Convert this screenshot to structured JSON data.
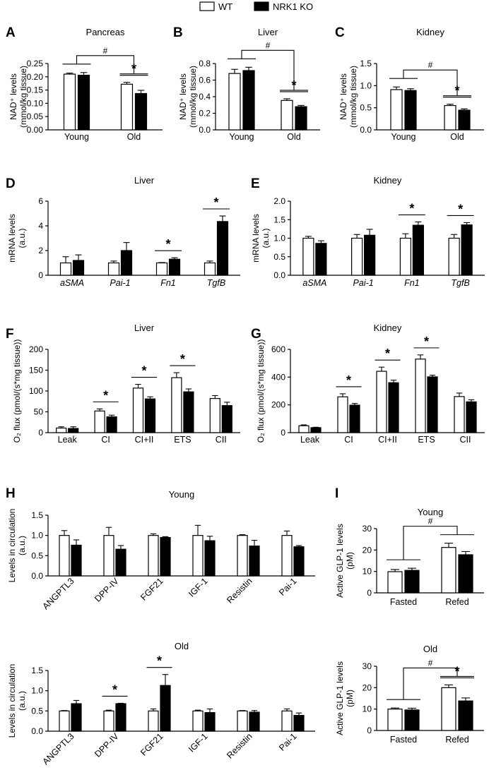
{
  "legend": {
    "items": [
      {
        "label": "WT",
        "fill": "#ffffff"
      },
      {
        "label": "NRK1 KO",
        "fill": "#000000"
      }
    ]
  },
  "chart_data": [
    {
      "panel": "A",
      "title": "Pancreas",
      "type": "bar",
      "ylabel": [
        "NAD⁺ levels",
        "(mmol/kg tissue)"
      ],
      "ylim": [
        0,
        0.25
      ],
      "yticks": [
        "0.00",
        "0.05",
        "0.10",
        "0.15",
        "0.20",
        "0.25"
      ],
      "categories": [
        "Young",
        "Old"
      ],
      "series": [
        {
          "name": "WT",
          "values": [
            0.21,
            0.172
          ],
          "err": [
            0.004,
            0.007
          ]
        },
        {
          "name": "NRK1 KO",
          "values": [
            0.206,
            0.137
          ],
          "err": [
            0.01,
            0.012
          ]
        }
      ],
      "annotations": [
        {
          "type": "bracket",
          "label": "#",
          "between": [
            "Young",
            "Old"
          ]
        },
        {
          "type": "sig",
          "label": "*",
          "category": "Old"
        }
      ]
    },
    {
      "panel": "B",
      "title": "Liver",
      "type": "bar",
      "ylabel": [
        "NAD⁺ levels",
        "(mmol/kg tissue)"
      ],
      "ylim": [
        0,
        0.8
      ],
      "yticks": [
        "0.0",
        "0.2",
        "0.4",
        "0.6",
        "0.8"
      ],
      "categories": [
        "Young",
        "Old"
      ],
      "series": [
        {
          "name": "WT",
          "values": [
            0.68,
            0.355
          ],
          "err": [
            0.05,
            0.02
          ]
        },
        {
          "name": "NRK1 KO",
          "values": [
            0.715,
            0.28
          ],
          "err": [
            0.04,
            0.015
          ]
        }
      ],
      "annotations": [
        {
          "type": "bracket",
          "label": "#",
          "between": [
            "Young",
            "Old"
          ]
        },
        {
          "type": "sig",
          "label": "*",
          "category": "Old"
        }
      ]
    },
    {
      "panel": "C",
      "title": "Kidney",
      "type": "bar",
      "ylabel": [
        "NAD⁺ levels",
        "(mmol/kg tissue)"
      ],
      "ylim": [
        0,
        1.5
      ],
      "yticks": [
        "0.0",
        "0.5",
        "1.0",
        "1.5"
      ],
      "categories": [
        "Young",
        "Old"
      ],
      "series": [
        {
          "name": "WT",
          "values": [
            0.91,
            0.55
          ],
          "err": [
            0.06,
            0.03
          ]
        },
        {
          "name": "NRK1 KO",
          "values": [
            0.89,
            0.445
          ],
          "err": [
            0.04,
            0.03
          ]
        }
      ],
      "annotations": [
        {
          "type": "bracket",
          "label": "#",
          "between": [
            "Young",
            "Old"
          ]
        },
        {
          "type": "sig",
          "label": "*",
          "category": "Old"
        }
      ]
    },
    {
      "panel": "D",
      "title": "Liver",
      "type": "bar",
      "ylabel": [
        "mRNA levels",
        "(a.u.)"
      ],
      "ylim": [
        0,
        6
      ],
      "yticks": [
        "0",
        "2",
        "4",
        "6"
      ],
      "categories": [
        "aSMA",
        "Pai-1",
        "Fn1",
        "TgfB"
      ],
      "series": [
        {
          "name": "WT",
          "values": [
            1.0,
            1.0,
            1.0,
            1.0
          ],
          "err": [
            0.5,
            0.15,
            0.03,
            0.15
          ]
        },
        {
          "name": "NRK1 KO",
          "values": [
            1.2,
            2.0,
            1.3,
            4.35
          ],
          "err": [
            0.45,
            0.65,
            0.12,
            0.45
          ]
        }
      ],
      "annotations": [
        {
          "type": "sig",
          "label": "*",
          "category": "Fn1"
        },
        {
          "type": "sig",
          "label": "*",
          "category": "TgfB"
        }
      ]
    },
    {
      "panel": "E",
      "title": "Kidney",
      "type": "bar",
      "ylabel": [
        "mRNA levels",
        "(a.u.)"
      ],
      "ylim": [
        0,
        2.0
      ],
      "yticks": [
        "0.0",
        "0.5",
        "1.0",
        "1.5",
        "2.0"
      ],
      "categories": [
        "aSMA",
        "Pai-1",
        "Fn1",
        "TgfB"
      ],
      "series": [
        {
          "name": "WT",
          "values": [
            1.0,
            1.0,
            1.0,
            1.0
          ],
          "err": [
            0.05,
            0.1,
            0.12,
            0.1
          ]
        },
        {
          "name": "NRK1 KO",
          "values": [
            0.86,
            1.08,
            1.35,
            1.36
          ],
          "err": [
            0.07,
            0.16,
            0.09,
            0.06
          ]
        }
      ],
      "annotations": [
        {
          "type": "sig",
          "label": "*",
          "category": "Fn1"
        },
        {
          "type": "sig",
          "label": "*",
          "category": "TgfB"
        }
      ]
    },
    {
      "panel": "F",
      "title": "Liver",
      "type": "bar",
      "ylabel": [
        "O₂ flux (pmol/(s*mg tissue))"
      ],
      "ylim": [
        0,
        200
      ],
      "yticks": [
        "0",
        "50",
        "100",
        "150",
        "200"
      ],
      "categories": [
        "Leak",
        "CI",
        "CI+II",
        "ETS",
        "CII"
      ],
      "series": [
        {
          "name": "WT",
          "values": [
            11,
            52,
            107,
            132,
            82
          ],
          "err": [
            3,
            5,
            9,
            12,
            7
          ]
        },
        {
          "name": "NRK1 KO",
          "values": [
            10,
            38,
            81,
            98,
            65
          ],
          "err": [
            4,
            4,
            5,
            7,
            8
          ]
        }
      ],
      "annotations": [
        {
          "type": "sig",
          "label": "*",
          "category": "CI"
        },
        {
          "type": "sig",
          "label": "*",
          "category": "CI+II"
        },
        {
          "type": "sig",
          "label": "*",
          "category": "ETS"
        }
      ]
    },
    {
      "panel": "G",
      "title": "Kidney",
      "type": "bar",
      "ylabel": [
        "O₂ flux (pmol/(s*mg tissue))"
      ],
      "ylim": [
        0,
        600
      ],
      "yticks": [
        "0",
        "200",
        "400",
        "600"
      ],
      "categories": [
        "Leak",
        "CI",
        "CI+II",
        "ETS",
        "CII"
      ],
      "series": [
        {
          "name": "WT",
          "values": [
            50,
            258,
            442,
            530,
            260
          ],
          "err": [
            6,
            22,
            30,
            30,
            25
          ]
        },
        {
          "name": "NRK1 KO",
          "values": [
            36,
            198,
            360,
            402,
            222
          ],
          "err": [
            3,
            12,
            18,
            12,
            15
          ]
        }
      ],
      "annotations": [
        {
          "type": "sig",
          "label": "*",
          "category": "CI"
        },
        {
          "type": "sig",
          "label": "*",
          "category": "CI+II"
        },
        {
          "type": "sig",
          "label": "*",
          "category": "ETS"
        }
      ]
    },
    {
      "panel": "H",
      "title": "Young",
      "type": "bar",
      "ylabel": [
        "Levels in circulation",
        "(a.u.)"
      ],
      "ylim": [
        0,
        1.5
      ],
      "yticks": [
        "0.0",
        "0.5",
        "1.0",
        "1.5"
      ],
      "categories": [
        "ANGPTL3",
        "DPP-IV",
        "FGF21",
        "IGF-1",
        "Resistin",
        "Pai-1"
      ],
      "series": [
        {
          "name": "WT",
          "values": [
            1.0,
            1.0,
            1.0,
            1.0,
            1.0,
            1.0
          ],
          "err": [
            0.12,
            0.2,
            0.04,
            0.25,
            0.02,
            0.11
          ]
        },
        {
          "name": "NRK1 KO",
          "values": [
            0.76,
            0.66,
            0.95,
            0.87,
            0.74,
            0.72
          ],
          "err": [
            0.13,
            0.09,
            0.02,
            0.11,
            0.14,
            0.03
          ]
        }
      ],
      "annotations": []
    },
    {
      "panel": "H",
      "title": "Old",
      "type": "bar",
      "ylabel": [
        "Levels in circulation",
        "(a.u.)"
      ],
      "ylim": [
        0,
        1.5
      ],
      "yticks": [
        "0.0",
        "0.5",
        "1.0",
        "1.5"
      ],
      "categories": [
        "ANGPTL3",
        "DPP-IV",
        "FGF21",
        "IGF-1",
        "Resistin",
        "Pai-1"
      ],
      "series": [
        {
          "name": "WT",
          "values": [
            0.5,
            0.5,
            0.5,
            0.5,
            0.5,
            0.5
          ],
          "err": [
            0.01,
            0.02,
            0.05,
            0.02,
            0.01,
            0.05
          ]
        },
        {
          "name": "NRK1 KO",
          "values": [
            0.68,
            0.68,
            1.13,
            0.46,
            0.47,
            0.39
          ],
          "err": [
            0.08,
            0.01,
            0.27,
            0.09,
            0.04,
            0.06
          ]
        }
      ],
      "annotations": [
        {
          "type": "sig",
          "label": "*",
          "category": "DPP-IV"
        },
        {
          "type": "sig",
          "label": "*",
          "category": "FGF21"
        }
      ]
    },
    {
      "panel": "I",
      "title": "Young",
      "type": "bar",
      "ylabel": [
        "Active GLP-1 levels",
        "(pM)"
      ],
      "ylim": [
        0,
        30
      ],
      "yticks": [
        "0",
        "10",
        "20",
        "30"
      ],
      "categories": [
        "Fasted",
        "Refed"
      ],
      "series": [
        {
          "name": "WT",
          "values": [
            9.9,
            21.2
          ],
          "err": [
            1.0,
            2.0
          ]
        },
        {
          "name": "NRK1 KO",
          "values": [
            10.5,
            17.8
          ],
          "err": [
            1.0,
            1.5
          ]
        }
      ],
      "annotations": [
        {
          "type": "bracket",
          "label": "#",
          "between": [
            "Fasted",
            "Refed"
          ]
        }
      ]
    },
    {
      "panel": "I",
      "title": "Old",
      "type": "bar",
      "ylabel": [
        "Active GLP-1 levels",
        "(pM)"
      ],
      "ylim": [
        0,
        30
      ],
      "yticks": [
        "0",
        "10",
        "20",
        "30"
      ],
      "categories": [
        "Fasted",
        "Refed"
      ],
      "series": [
        {
          "name": "WT",
          "values": [
            10.0,
            20.0
          ],
          "err": [
            0.5,
            1.3
          ]
        },
        {
          "name": "NRK1 KO",
          "values": [
            9.6,
            13.8
          ],
          "err": [
            0.8,
            1.4
          ]
        }
      ],
      "annotations": [
        {
          "type": "bracket",
          "label": "#",
          "between": [
            "Fasted",
            "Refed"
          ]
        },
        {
          "type": "sig",
          "label": "*",
          "category": "Refed"
        }
      ]
    }
  ]
}
